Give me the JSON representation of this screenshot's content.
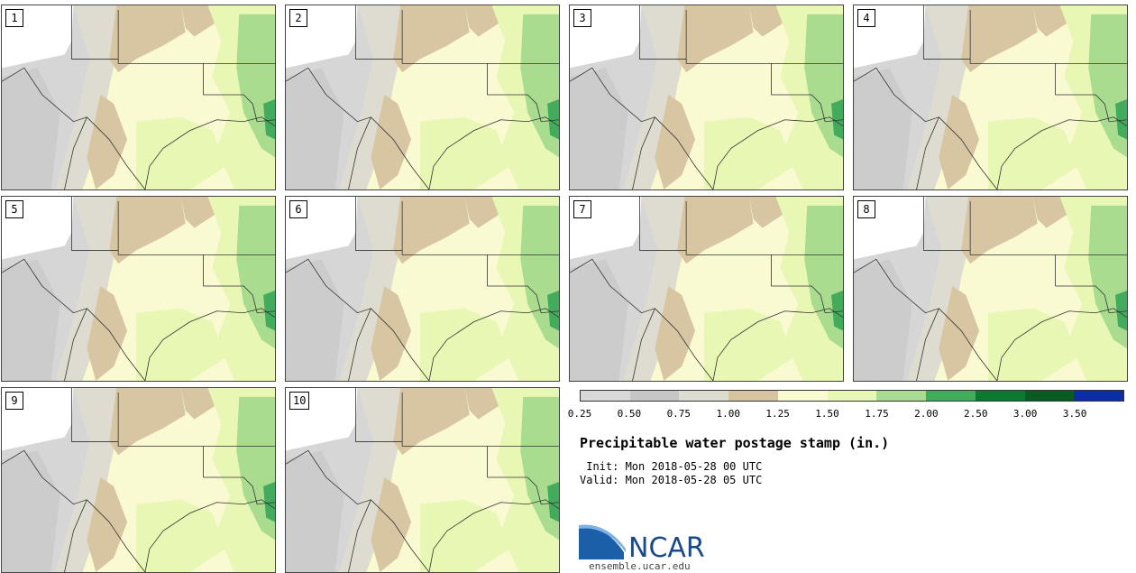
{
  "panels": [
    {
      "label": "1"
    },
    {
      "label": "2"
    },
    {
      "label": "3"
    },
    {
      "label": "4"
    },
    {
      "label": "5"
    },
    {
      "label": "6"
    },
    {
      "label": "7"
    },
    {
      "label": "8"
    },
    {
      "label": "9"
    },
    {
      "label": "10"
    }
  ],
  "colorbar": {
    "labels": [
      "0.25",
      "0.50",
      "0.75",
      "1.00",
      "1.25",
      "1.50",
      "1.75",
      "2.00",
      "2.50",
      "3.00",
      "3.50"
    ],
    "colors": [
      "#d9d9d9",
      "#c6c6c6",
      "#dcdcd0",
      "#d6c3a0",
      "#f9f9d2",
      "#e8f7b3",
      "#a9dc8f",
      "#43ac5c",
      "#0a7a33",
      "#0a5a24",
      "#0b2ea8"
    ]
  },
  "title": "Precipitable water postage stamp (in.)",
  "init": " Init: Mon 2018-05-28 00 UTC",
  "valid": "Valid: Mon 2018-05-28 05 UTC",
  "logo": {
    "text": "NCAR",
    "url": "ensemble.ucar.edu"
  }
}
